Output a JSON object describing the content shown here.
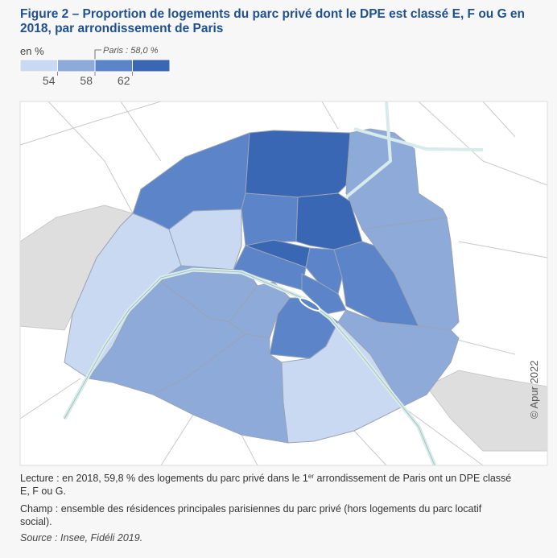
{
  "title_line1": "Figure 2 – Proportion de logements du parc privé dont le DPE est classé E, F ou G en",
  "title_line2": "2018, par arrondissement de Paris",
  "legend": {
    "title": "en %",
    "colors": [
      "#c9d9f2",
      "#8eaad9",
      "#5b85c8",
      "#3a67b3"
    ],
    "ticks": [
      54,
      58,
      62
    ],
    "reference_label": "Paris : 58,0 %"
  },
  "copyright": "© Apur 2022",
  "notes": {
    "lecture_part1": "Lecture : en 2018, 59,8 % des logements du parc privé dans le 1",
    "lecture_sup": "er",
    "lecture_part2": " arrondissement de Paris ont un DPE classé",
    "lecture_line2": "E, F ou G.",
    "champ_line1": "Champ : ensemble des résidences principales parisiennes du parc privé (hors logements du parc locatif",
    "champ_line2": "social).",
    "source": "Source : Insee, Fidéli 2019."
  }
}
